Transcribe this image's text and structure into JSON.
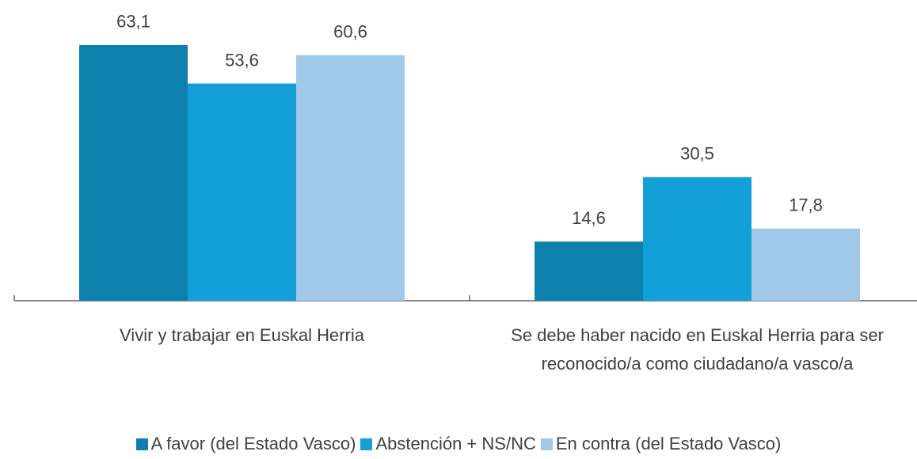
{
  "chart_data": {
    "type": "bar",
    "categories": [
      "Vivir y trabajar en Euskal Herria",
      "Se debe haber nacido en Euskal Herria para ser reconocido/a como ciudadano/a vasco/a"
    ],
    "series": [
      {
        "name": "A favor (del Estado Vasco)",
        "color": "#0e80ad",
        "values": [
          63.1,
          14.6
        ],
        "value_labels": [
          "63,1",
          "14,6"
        ]
      },
      {
        "name": "Abstención + NS/NC",
        "color": "#139fd8",
        "values": [
          53.6,
          30.5
        ],
        "value_labels": [
          "53,6",
          "30,5"
        ]
      },
      {
        "name": "En contra (del Estado Vasco)",
        "color": "#a0c8e8",
        "values": [
          60.6,
          17.8
        ],
        "value_labels": [
          "60,6",
          "17,8"
        ]
      }
    ],
    "ylim": [
      0,
      70
    ],
    "legend": "bottom"
  }
}
